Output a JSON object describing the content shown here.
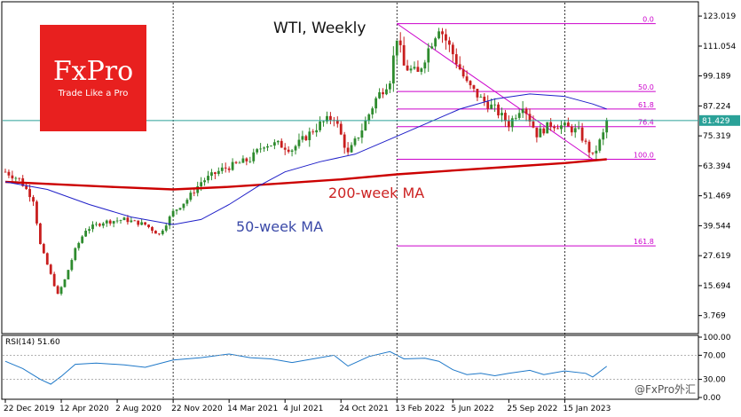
{
  "brand": {
    "logo_text": "FxPro",
    "tagline": "Trade Like a Pro",
    "watermark": "@FxPro外汇",
    "color": "#e8201f"
  },
  "chart_data": {
    "type": "candlestick",
    "title": "WTI, Weekly",
    "y_ticks": [
      "123.019",
      "111.054",
      "99.189",
      "87.224",
      "75.319",
      "63.394",
      "51.469",
      "39.544",
      "27.619",
      "15.694",
      "3.769"
    ],
    "y_tick_values": [
      123.019,
      111.054,
      99.189,
      87.224,
      75.319,
      63.394,
      51.469,
      39.544,
      27.619,
      15.694,
      3.769
    ],
    "ylim": [
      -2,
      128
    ],
    "x_ticks": [
      "22 Dec 2019",
      "12 Apr 2020",
      "2 Aug 2020",
      "22 Nov 2020",
      "14 Mar 2021",
      "4 Jul 2021",
      "24 Oct 2021",
      "13 Feb 2022",
      "5 Jun 2022",
      "25 Sep 2022",
      "15 Jan 2023"
    ],
    "x_tick_index": [
      0,
      16,
      32,
      48,
      64,
      80,
      96,
      112,
      128,
      144,
      160
    ],
    "vertical_separators_at": [
      "22 Nov 2020",
      "13 Feb 2022",
      "15 Jan 2023"
    ],
    "last_price": {
      "label": "81.429",
      "value": 81.429
    },
    "price_path_weekly_close": [
      {
        "week": 0,
        "close": 61
      },
      {
        "week": 4,
        "close": 58
      },
      {
        "week": 8,
        "close": 50
      },
      {
        "week": 10,
        "close": 32
      },
      {
        "week": 13,
        "close": 20
      },
      {
        "week": 15,
        "close": 12
      },
      {
        "week": 17,
        "close": 18
      },
      {
        "week": 20,
        "close": 30
      },
      {
        "week": 23,
        "close": 38
      },
      {
        "week": 28,
        "close": 41
      },
      {
        "week": 34,
        "close": 42
      },
      {
        "week": 40,
        "close": 40
      },
      {
        "week": 44,
        "close": 36
      },
      {
        "week": 48,
        "close": 45
      },
      {
        "week": 52,
        "close": 50
      },
      {
        "week": 56,
        "close": 57
      },
      {
        "week": 62,
        "close": 62
      },
      {
        "week": 66,
        "close": 64
      },
      {
        "week": 70,
        "close": 66
      },
      {
        "week": 74,
        "close": 72
      },
      {
        "week": 78,
        "close": 72
      },
      {
        "week": 82,
        "close": 70
      },
      {
        "week": 86,
        "close": 75
      },
      {
        "week": 90,
        "close": 80
      },
      {
        "week": 94,
        "close": 83
      },
      {
        "week": 98,
        "close": 68
      },
      {
        "week": 102,
        "close": 78
      },
      {
        "week": 106,
        "close": 90
      },
      {
        "week": 110,
        "close": 98
      },
      {
        "week": 112,
        "close": 115
      },
      {
        "week": 114,
        "close": 103
      },
      {
        "week": 118,
        "close": 100
      },
      {
        "week": 121,
        "close": 110
      },
      {
        "week": 124,
        "close": 119
      },
      {
        "week": 128,
        "close": 108
      },
      {
        "week": 132,
        "close": 96
      },
      {
        "week": 136,
        "close": 90
      },
      {
        "week": 140,
        "close": 86
      },
      {
        "week": 144,
        "close": 80
      },
      {
        "week": 148,
        "close": 88
      },
      {
        "week": 152,
        "close": 76
      },
      {
        "week": 156,
        "close": 80
      },
      {
        "week": 160,
        "close": 79
      },
      {
        "week": 164,
        "close": 77
      },
      {
        "week": 168,
        "close": 67
      },
      {
        "week": 171,
        "close": 76
      },
      {
        "week": 172,
        "close": 81.4
      }
    ],
    "ma50": {
      "label": "50-week MA",
      "color": "#1f1fc8",
      "points": [
        {
          "week": 0,
          "value": 57
        },
        {
          "week": 12,
          "value": 54
        },
        {
          "week": 24,
          "value": 48
        },
        {
          "week": 36,
          "value": 43
        },
        {
          "week": 48,
          "value": 40
        },
        {
          "week": 56,
          "value": 42
        },
        {
          "week": 64,
          "value": 48
        },
        {
          "week": 72,
          "value": 55
        },
        {
          "week": 80,
          "value": 61
        },
        {
          "week": 90,
          "value": 65
        },
        {
          "week": 100,
          "value": 68
        },
        {
          "week": 110,
          "value": 74
        },
        {
          "week": 120,
          "value": 80
        },
        {
          "week": 130,
          "value": 86
        },
        {
          "week": 140,
          "value": 90
        },
        {
          "week": 150,
          "value": 92
        },
        {
          "week": 160,
          "value": 91
        },
        {
          "week": 168,
          "value": 88
        },
        {
          "week": 172,
          "value": 86
        }
      ]
    },
    "ma200": {
      "label": "200-week MA",
      "color": "#cc0000",
      "points": [
        {
          "week": 0,
          "value": 57
        },
        {
          "week": 15,
          "value": 56
        },
        {
          "week": 30,
          "value": 55
        },
        {
          "week": 48,
          "value": 54
        },
        {
          "week": 64,
          "value": 55
        },
        {
          "week": 80,
          "value": 56.5
        },
        {
          "week": 96,
          "value": 58
        },
        {
          "week": 112,
          "value": 60
        },
        {
          "week": 128,
          "value": 61.5
        },
        {
          "week": 144,
          "value": 63
        },
        {
          "week": 160,
          "value": 64.5
        },
        {
          "week": 172,
          "value": 66
        }
      ]
    },
    "fibonacci": {
      "start_week": 112,
      "end_week": 186,
      "levels": [
        {
          "label": "0.0",
          "price": 120
        },
        {
          "label": "50.0",
          "price": 93
        },
        {
          "label": "61.8",
          "price": 86
        },
        {
          "label": "76.4",
          "price": 79
        },
        {
          "label": "100.0",
          "price": 66
        },
        {
          "label": "161.8",
          "price": 31.5
        }
      ],
      "trendline": {
        "from_week": 112,
        "from_price": 120,
        "to_week": 168,
        "to_price": 66
      }
    },
    "rsi": {
      "label": "RSI(14) 51.60",
      "y_ticks": [
        "100.00",
        "70.00",
        "30.00",
        "0.00"
      ],
      "y_tick_values": [
        100,
        70,
        30,
        0
      ],
      "levels": [
        70,
        30
      ],
      "points": [
        {
          "week": 0,
          "value": 60
        },
        {
          "week": 5,
          "value": 48
        },
        {
          "week": 10,
          "value": 30
        },
        {
          "week": 13,
          "value": 22
        },
        {
          "week": 16,
          "value": 35
        },
        {
          "week": 20,
          "value": 55
        },
        {
          "week": 26,
          "value": 57
        },
        {
          "week": 34,
          "value": 54
        },
        {
          "week": 40,
          "value": 50
        },
        {
          "week": 48,
          "value": 62
        },
        {
          "week": 56,
          "value": 66
        },
        {
          "week": 64,
          "value": 72
        },
        {
          "week": 70,
          "value": 66
        },
        {
          "week": 76,
          "value": 64
        },
        {
          "week": 82,
          "value": 58
        },
        {
          "week": 88,
          "value": 64
        },
        {
          "week": 94,
          "value": 70
        },
        {
          "week": 98,
          "value": 52
        },
        {
          "week": 104,
          "value": 68
        },
        {
          "week": 110,
          "value": 76
        },
        {
          "week": 114,
          "value": 64
        },
        {
          "week": 120,
          "value": 65
        },
        {
          "week": 124,
          "value": 60
        },
        {
          "week": 128,
          "value": 46
        },
        {
          "week": 132,
          "value": 38
        },
        {
          "week": 136,
          "value": 40
        },
        {
          "week": 140,
          "value": 36
        },
        {
          "week": 144,
          "value": 40
        },
        {
          "week": 150,
          "value": 45
        },
        {
          "week": 154,
          "value": 38
        },
        {
          "week": 160,
          "value": 44
        },
        {
          "week": 166,
          "value": 40
        },
        {
          "week": 168,
          "value": 34
        },
        {
          "week": 172,
          "value": 51.6
        }
      ]
    },
    "grid": false,
    "last_price_line_color": "#2aa198",
    "fib_color": "#cc00cc"
  }
}
